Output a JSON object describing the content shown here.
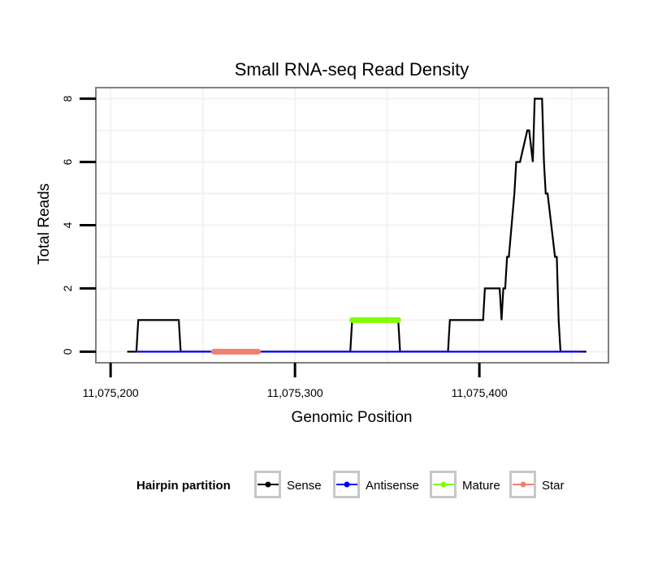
{
  "chart_data": {
    "type": "line",
    "title": "Small RNA-seq Read Density",
    "xlabel": "Genomic Position",
    "ylabel": "Total Reads",
    "xlim": [
      11075192,
      11075470
    ],
    "ylim": [
      -0.35,
      8.35
    ],
    "x_ticks": [
      11075200,
      11075300,
      11075400
    ],
    "x_tick_labels": [
      "11,075,200",
      "11,075,300",
      "11,075,400"
    ],
    "y_ticks": [
      0,
      2,
      4,
      6,
      8
    ],
    "y_tick_labels": [
      "0",
      "2",
      "4",
      "6",
      "8"
    ],
    "grid": true,
    "legend": {
      "title": "Hairpin partition",
      "position": "bottom",
      "entries": [
        {
          "label": "Sense",
          "color": "#000000"
        },
        {
          "label": "Antisense",
          "color": "#0000ff"
        },
        {
          "label": "Mature",
          "color": "#7fff00"
        },
        {
          "label": "Star",
          "color": "#f08070"
        }
      ]
    },
    "series": [
      {
        "name": "Sense",
        "color": "#000000",
        "x": [
          11075209,
          11075214,
          11075215,
          11075237,
          11075238,
          11075330,
          11075331,
          11075356,
          11075357,
          11075383,
          11075384,
          11075402,
          11075403,
          11075411,
          11075412,
          11075413,
          11075414,
          11075415,
          11075416,
          11075419,
          11075420,
          11075421,
          11075422,
          11075426,
          11075427,
          11075429,
          11075430,
          11075434,
          11075435,
          11075436,
          11075437,
          11075441,
          11075442,
          11075443,
          11075444,
          11075447,
          11075448,
          11075453,
          11075454,
          11075458
        ],
        "values": [
          0,
          0,
          1,
          1,
          0,
          0,
          1,
          1,
          0,
          0,
          1,
          1,
          2,
          2,
          1,
          2,
          2,
          3,
          3,
          5,
          6,
          6,
          6,
          7,
          7,
          6,
          8,
          8,
          6,
          5,
          5,
          3,
          3,
          1,
          0,
          0,
          0,
          0,
          0,
          0
        ]
      },
      {
        "name": "Antisense",
        "color": "#0000ff",
        "x": [
          11075214,
          11075456
        ],
        "values": [
          0,
          0
        ]
      },
      {
        "name": "Mature",
        "color": "#7fff00",
        "x": [
          11075331,
          11075356
        ],
        "values": [
          1,
          1
        ]
      },
      {
        "name": "Star",
        "color": "#f08070",
        "x": [
          11075256,
          11075280
        ],
        "values": [
          0,
          0
        ]
      }
    ]
  }
}
